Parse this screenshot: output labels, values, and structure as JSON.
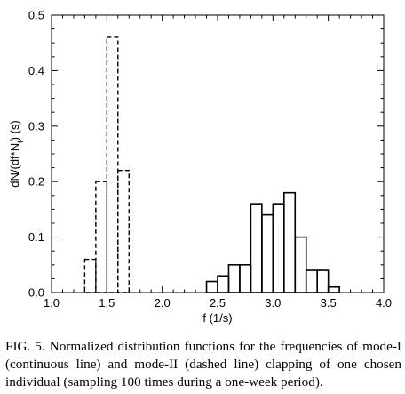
{
  "chart_data": {
    "type": "bar",
    "xlabel": "f (1/s)",
    "ylabel": "dN/(df*N",
    "ylabel_sub": "f",
    "ylabel_unit": ")  (s)",
    "xlim": [
      1.0,
      4.0
    ],
    "ylim": [
      0,
      0.5
    ],
    "x_ticks": [
      "1.0",
      "1.5",
      "2.0",
      "2.5",
      "3.0",
      "3.5",
      "4.0"
    ],
    "y_ticks": [
      "0.0",
      "0.1",
      "0.2",
      "0.3",
      "0.4",
      "0.5"
    ],
    "bin_width": 0.1,
    "grid": false,
    "series": [
      {
        "style": "solid",
        "bins": [
          {
            "x0": 2.4,
            "x1": 2.5,
            "value": 0.02
          },
          {
            "x0": 2.5,
            "x1": 2.6,
            "value": 0.03
          },
          {
            "x0": 2.6,
            "x1": 2.7,
            "value": 0.05
          },
          {
            "x0": 2.7,
            "x1": 2.8,
            "value": 0.05
          },
          {
            "x0": 2.8,
            "x1": 2.9,
            "value": 0.16
          },
          {
            "x0": 2.9,
            "x1": 3.0,
            "value": 0.14
          },
          {
            "x0": 3.0,
            "x1": 3.1,
            "value": 0.16
          },
          {
            "x0": 3.1,
            "x1": 3.2,
            "value": 0.18
          },
          {
            "x0": 3.2,
            "x1": 3.3,
            "value": 0.1
          },
          {
            "x0": 3.3,
            "x1": 3.4,
            "value": 0.04
          },
          {
            "x0": 3.4,
            "x1": 3.5,
            "value": 0.04
          },
          {
            "x0": 3.5,
            "x1": 3.6,
            "value": 0.01
          }
        ]
      },
      {
        "style": "dashed",
        "bins": [
          {
            "x0": 1.3,
            "x1": 1.4,
            "value": 0.06
          },
          {
            "x0": 1.4,
            "x1": 1.5,
            "value": 0.2
          },
          {
            "x0": 1.5,
            "x1": 1.6,
            "value": 0.46
          },
          {
            "x0": 1.6,
            "x1": 1.7,
            "value": 0.22
          }
        ]
      }
    ]
  },
  "caption": "FIG. 5. Normalized distribution functions for the frequencies of mode-I (continuous line) and mode-II (dashed line) clapping of one chosen individual (sampling 100 times during a one-week period)."
}
